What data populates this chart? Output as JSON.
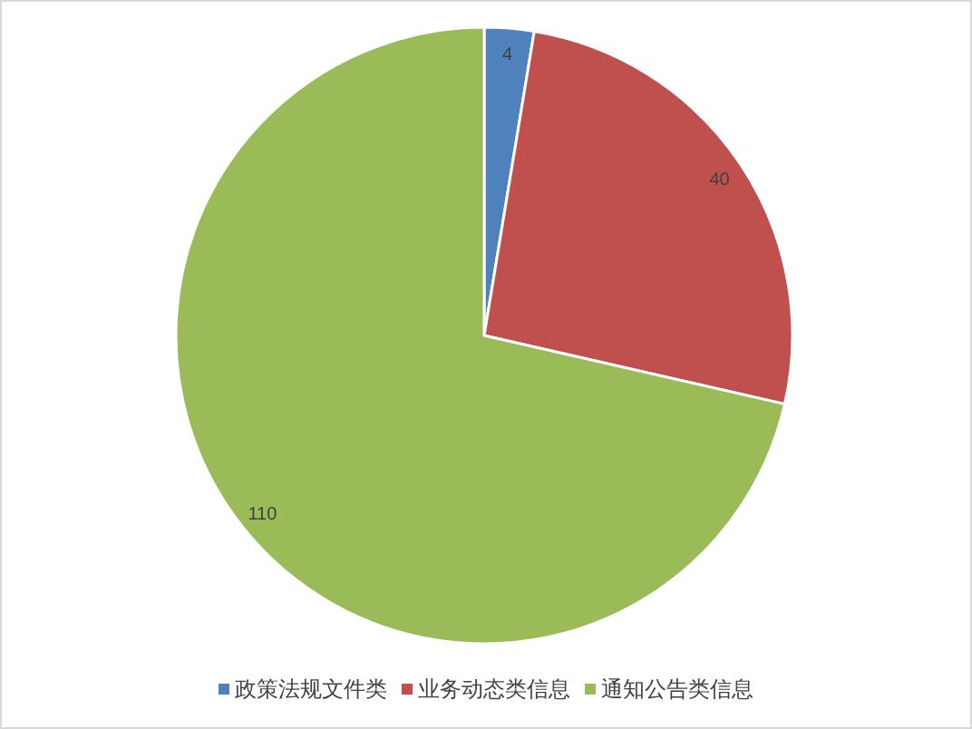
{
  "chart_data": {
    "type": "pie",
    "categories": [
      "政策法规文件类",
      "业务动态类信息",
      "通知公告类信息"
    ],
    "values": [
      4,
      40,
      110
    ],
    "colors": [
      "#4f81bd",
      "#c0504d",
      "#9bbb59"
    ],
    "data_labels": true,
    "legend": "bottom"
  }
}
